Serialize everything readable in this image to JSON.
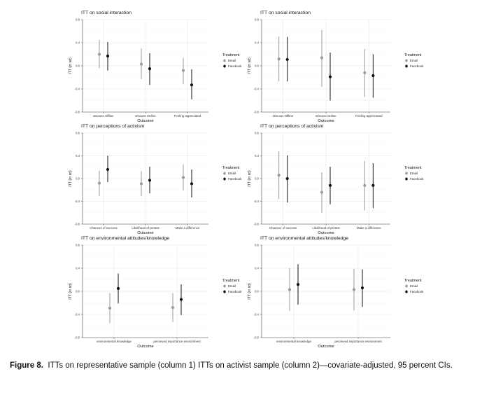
{
  "caption": {
    "label": "Figure 8.",
    "text": "ITTs on representative sample (column 1) ITTs on activist sample (column 2)—covariate-adjusted, 95 percent CIs."
  },
  "colors": {
    "email": "#9a9a9a",
    "facebook": "#111111",
    "grid": "#e6e6e6"
  },
  "chart_data": [
    {
      "type": "scatter",
      "title": "ITT on social interaction",
      "xlabel": "Outcome",
      "ylabel": "ITT (in sd)",
      "ylim": [
        -0.8,
        0.8
      ],
      "yticks": [
        "0.8",
        "0.4",
        "0.0",
        "-0.4",
        "-0.8"
      ],
      "categories": [
        "Discuss Offline",
        "Discuss Online",
        "Feeling appreciated"
      ],
      "legend_title": "Treatment",
      "series": [
        {
          "name": "Email",
          "values": [
            0.2,
            0.03,
            -0.08
          ],
          "lower": [
            -0.04,
            -0.23,
            -0.32
          ],
          "upper": [
            0.45,
            0.3,
            0.14
          ]
        },
        {
          "name": "Facebook",
          "values": [
            0.17,
            -0.05,
            -0.33
          ],
          "lower": [
            -0.08,
            -0.33,
            -0.58
          ],
          "upper": [
            0.41,
            0.22,
            -0.06
          ]
        }
      ]
    },
    {
      "type": "scatter",
      "title": "ITT on social interaction",
      "xlabel": "Outcome",
      "ylabel": "ITT (in sd)",
      "ylim": [
        -0.8,
        0.8
      ],
      "yticks": [
        "0.8",
        "0.4",
        "0.0",
        "-0.4",
        "-0.8"
      ],
      "categories": [
        "Discuss Offline",
        "Discuss Online",
        "Feeling appreciated"
      ],
      "legend_title": "Treatment",
      "series": [
        {
          "name": "Email",
          "values": [
            0.12,
            0.14,
            -0.12
          ],
          "lower": [
            -0.27,
            -0.36,
            -0.54
          ],
          "upper": [
            0.51,
            0.62,
            0.29
          ]
        },
        {
          "name": "Facebook",
          "values": [
            0.11,
            -0.19,
            -0.17
          ],
          "lower": [
            -0.27,
            -0.6,
            -0.55
          ],
          "upper": [
            0.5,
            0.23,
            0.2
          ]
        }
      ]
    },
    {
      "type": "scatter",
      "title": "ITT on perceptions of activism",
      "xlabel": "Outcome",
      "ylabel": "ITT (in sd)",
      "ylim": [
        -0.8,
        0.8
      ],
      "yticks": [
        "0.8",
        "0.4",
        "0.0",
        "-0.4",
        "-0.8"
      ],
      "categories": [
        "Chances of success",
        "Likelihood of protest",
        "Make a difference"
      ],
      "legend_title": "Treatment",
      "series": [
        {
          "name": "Email",
          "values": [
            -0.08,
            -0.09,
            0.02
          ],
          "lower": [
            -0.31,
            -0.31,
            -0.21
          ],
          "upper": [
            0.14,
            0.13,
            0.25
          ]
        },
        {
          "name": "Facebook",
          "values": [
            0.16,
            -0.03,
            -0.09
          ],
          "lower": [
            -0.06,
            -0.26,
            -0.33
          ],
          "upper": [
            0.4,
            0.21,
            0.16
          ]
        }
      ]
    },
    {
      "type": "scatter",
      "title": "ITT on perceptions of activism",
      "xlabel": "Outcome",
      "ylabel": "ITT (in sd)",
      "ylim": [
        -0.8,
        0.8
      ],
      "yticks": [
        "0.8",
        "0.4",
        "0.0",
        "-0.4",
        "-0.8"
      ],
      "categories": [
        "Chances of success",
        "Likelihood of protest",
        "Make a difference"
      ],
      "legend_title": "Treatment",
      "series": [
        {
          "name": "Email",
          "values": [
            0.06,
            -0.24,
            -0.12
          ],
          "lower": [
            -0.36,
            -0.6,
            -0.56
          ],
          "upper": [
            0.48,
            0.11,
            0.31
          ]
        },
        {
          "name": "Facebook",
          "values": [
            0.0,
            -0.12,
            -0.12
          ],
          "lower": [
            -0.42,
            -0.45,
            -0.52
          ],
          "upper": [
            0.41,
            0.21,
            0.27
          ]
        }
      ]
    },
    {
      "type": "scatter",
      "title": "ITT on environmental attitudes/knowledge",
      "xlabel": "Outcome",
      "ylabel": "ITT (in sd)",
      "ylim": [
        -0.8,
        0.8
      ],
      "yticks": [
        "0.8",
        "0.4",
        "0.0",
        "-0.4",
        "-0.8"
      ],
      "categories": [
        "environmental knowledge",
        "perceived importance environment"
      ],
      "legend_title": "Treatment",
      "series": [
        {
          "name": "Email",
          "values": [
            -0.29,
            -0.28
          ],
          "lower": [
            -0.55,
            -0.53
          ],
          "upper": [
            -0.03,
            -0.03
          ]
        },
        {
          "name": "Facebook",
          "values": [
            0.05,
            -0.14
          ],
          "lower": [
            -0.21,
            -0.41
          ],
          "upper": [
            0.31,
            0.12
          ]
        }
      ]
    },
    {
      "type": "scatter",
      "title": "ITT on environmental attitudes/knowledge",
      "xlabel": "Outcome",
      "ylabel": "ITT (in sd)",
      "ylim": [
        -0.8,
        0.8
      ],
      "yticks": [
        "0.8",
        "0.4",
        "0.0",
        "-0.4",
        "-0.8"
      ],
      "categories": [
        "environmental knowledge",
        "perceived importance environment"
      ],
      "legend_title": "Treatment",
      "series": [
        {
          "name": "Email",
          "values": [
            0.03,
            0.03
          ],
          "lower": [
            -0.34,
            -0.33
          ],
          "upper": [
            0.4,
            0.39
          ]
        },
        {
          "name": "Facebook",
          "values": [
            0.12,
            0.06
          ],
          "lower": [
            -0.23,
            -0.27
          ],
          "upper": [
            0.47,
            0.38
          ]
        }
      ]
    }
  ]
}
